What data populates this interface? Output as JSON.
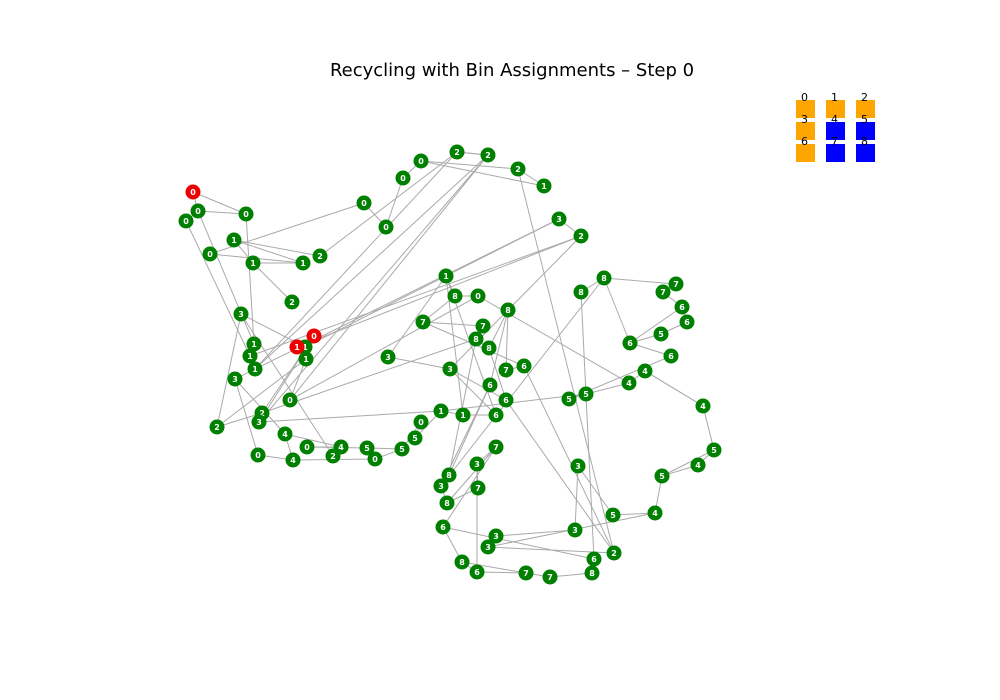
{
  "chart_data": {
    "type": "network",
    "title": "Recycling with Bin Assignments – Step 0",
    "colors": {
      "agent": "#ee0000",
      "item": "#008000",
      "edge": "#aaaaaa",
      "bin_full": "#ffa500",
      "bin_empty": "#0000ff",
      "label": "#ffffff"
    },
    "bins": [
      {
        "label": "0",
        "state": "full"
      },
      {
        "label": "1",
        "state": "full"
      },
      {
        "label": "2",
        "state": "full"
      },
      {
        "label": "3",
        "state": "full"
      },
      {
        "label": "4",
        "state": "empty"
      },
      {
        "label": "5",
        "state": "empty"
      },
      {
        "label": "6",
        "state": "full"
      },
      {
        "label": "7",
        "state": "empty"
      },
      {
        "label": "8",
        "state": "empty"
      }
    ],
    "node_labels": [
      "0",
      "0",
      "0",
      "0",
      "0",
      "1",
      "1",
      "1",
      "2",
      "2",
      "1",
      "1",
      "1",
      "0",
      "0",
      "0",
      "0",
      "2",
      "2",
      "2",
      "1",
      "3",
      "2",
      "0",
      "1",
      "1",
      "1",
      "3",
      "3",
      "2",
      "2",
      "3",
      "0",
      "4",
      "0",
      "4",
      "2",
      "4",
      "0",
      "0",
      "5",
      "5",
      "5",
      "0",
      "1",
      "1",
      "6",
      "3",
      "3",
      "1",
      "8",
      "0",
      "7",
      "7",
      "8",
      "8",
      "8",
      "7",
      "6",
      "6",
      "6",
      "8",
      "3",
      "8",
      "7",
      "3",
      "7",
      "6",
      "8",
      "6",
      "7",
      "7",
      "8",
      "6",
      "2",
      "3",
      "3",
      "3",
      "3",
      "5",
      "4",
      "5",
      "4",
      "5",
      "4",
      "4",
      "4",
      "5",
      "5",
      "6",
      "6",
      "5",
      "6",
      "6",
      "7",
      "7",
      "8",
      "8"
    ],
    "node_roles": [
      "agent",
      "item",
      "item",
      "item",
      "item",
      "item",
      "item",
      "item",
      "item",
      "item",
      "item",
      "item",
      "item",
      "item",
      "item",
      "item",
      "item",
      "item",
      "item",
      "item",
      "item",
      "item",
      "item",
      "agent",
      "item",
      "agent",
      "item",
      "item",
      "item",
      "item",
      "item",
      "item",
      "item",
      "item",
      "item",
      "item",
      "item",
      "item",
      "item",
      "item",
      "item",
      "item",
      "item",
      "item",
      "item",
      "item",
      "item",
      "item",
      "item",
      "item",
      "item",
      "item",
      "item",
      "item",
      "item",
      "item",
      "item",
      "item",
      "item",
      "item",
      "item",
      "item",
      "item",
      "item",
      "item",
      "item",
      "item",
      "item",
      "item",
      "item",
      "item",
      "item",
      "item",
      "item",
      "item",
      "item",
      "item",
      "item",
      "item",
      "item",
      "item",
      "item",
      "item",
      "item",
      "item",
      "item",
      "item",
      "item",
      "item",
      "item",
      "item",
      "item",
      "item",
      "item",
      "item",
      "item",
      "item",
      "item"
    ],
    "edges": [
      [
        0,
        1
      ],
      [
        0,
        3
      ],
      [
        1,
        2
      ],
      [
        1,
        3
      ],
      [
        3,
        10
      ],
      [
        1,
        10
      ],
      [
        2,
        11
      ],
      [
        10,
        11
      ],
      [
        11,
        12
      ],
      [
        10,
        12
      ],
      [
        12,
        17
      ],
      [
        17,
        18
      ],
      [
        12,
        18
      ],
      [
        11,
        22
      ],
      [
        18,
        17
      ],
      [
        8,
        17
      ],
      [
        8,
        5
      ],
      [
        9,
        6
      ],
      [
        6,
        5
      ],
      [
        5,
        7
      ],
      [
        7,
        4
      ],
      [
        6,
        7
      ],
      [
        4,
        13
      ],
      [
        13,
        14
      ],
      [
        14,
        15
      ],
      [
        15,
        16
      ],
      [
        16,
        19
      ],
      [
        16,
        20
      ],
      [
        20,
        19
      ],
      [
        19,
        74
      ],
      [
        21,
        24
      ],
      [
        21,
        22
      ],
      [
        22,
        25
      ],
      [
        24,
        25
      ],
      [
        25,
        26
      ],
      [
        26,
        32
      ],
      [
        24,
        27
      ],
      [
        26,
        29
      ],
      [
        27,
        29
      ],
      [
        29,
        30
      ],
      [
        27,
        36
      ],
      [
        36,
        37
      ],
      [
        33,
        37
      ],
      [
        33,
        35
      ],
      [
        34,
        35
      ],
      [
        35,
        39
      ],
      [
        37,
        38
      ],
      [
        38,
        40
      ],
      [
        39,
        41
      ],
      [
        40,
        41
      ],
      [
        41,
        43
      ],
      [
        43,
        42
      ],
      [
        42,
        44
      ],
      [
        44,
        45
      ],
      [
        45,
        46
      ],
      [
        46,
        47
      ],
      [
        47,
        48
      ],
      [
        48,
        49
      ],
      [
        49,
        50
      ],
      [
        50,
        51
      ],
      [
        51,
        32
      ],
      [
        32,
        18
      ],
      [
        18,
        31
      ],
      [
        31,
        44
      ],
      [
        22,
        47
      ],
      [
        45,
        49
      ],
      [
        49,
        46
      ],
      [
        47,
        59
      ],
      [
        52,
        50
      ],
      [
        52,
        53
      ],
      [
        53,
        54
      ],
      [
        54,
        55
      ],
      [
        55,
        56
      ],
      [
        56,
        57
      ],
      [
        57,
        58
      ],
      [
        58,
        52
      ],
      [
        55,
        59
      ],
      [
        56,
        60
      ],
      [
        60,
        61
      ],
      [
        61,
        62
      ],
      [
        62,
        63
      ],
      [
        63,
        64
      ],
      [
        64,
        65
      ],
      [
        65,
        66
      ],
      [
        66,
        67
      ],
      [
        67,
        68
      ],
      [
        68,
        69
      ],
      [
        69,
        70
      ],
      [
        70,
        71
      ],
      [
        71,
        72
      ],
      [
        72,
        73
      ],
      [
        73,
        67
      ],
      [
        59,
        74
      ],
      [
        74,
        75
      ],
      [
        75,
        76
      ],
      [
        76,
        77
      ],
      [
        77,
        78
      ],
      [
        78,
        79
      ],
      [
        79,
        80
      ],
      [
        80,
        81
      ],
      [
        81,
        82
      ],
      [
        82,
        83
      ],
      [
        83,
        84
      ],
      [
        84,
        85
      ],
      [
        85,
        86
      ],
      [
        86,
        87
      ],
      [
        87,
        88
      ],
      [
        88,
        89
      ],
      [
        89,
        90
      ],
      [
        90,
        91
      ],
      [
        91,
        92
      ],
      [
        92,
        93
      ],
      [
        93,
        94
      ],
      [
        94,
        95
      ],
      [
        95,
        96
      ],
      [
        96,
        97
      ],
      [
        97,
        73
      ],
      [
        21,
        28
      ],
      [
        28,
        33
      ],
      [
        28,
        34
      ],
      [
        23,
        31
      ],
      [
        23,
        30
      ],
      [
        30,
        54
      ],
      [
        54,
        61
      ],
      [
        51,
        86
      ],
      [
        44,
        87
      ],
      [
        60,
        62
      ],
      [
        63,
        66
      ],
      [
        68,
        70
      ],
      [
        65,
        69
      ],
      [
        62,
        96
      ],
      [
        96,
        90
      ],
      [
        90,
        93
      ],
      [
        84,
        85
      ],
      [
        81,
        83
      ],
      [
        75,
        80
      ],
      [
        58,
        74
      ]
    ]
  }
}
